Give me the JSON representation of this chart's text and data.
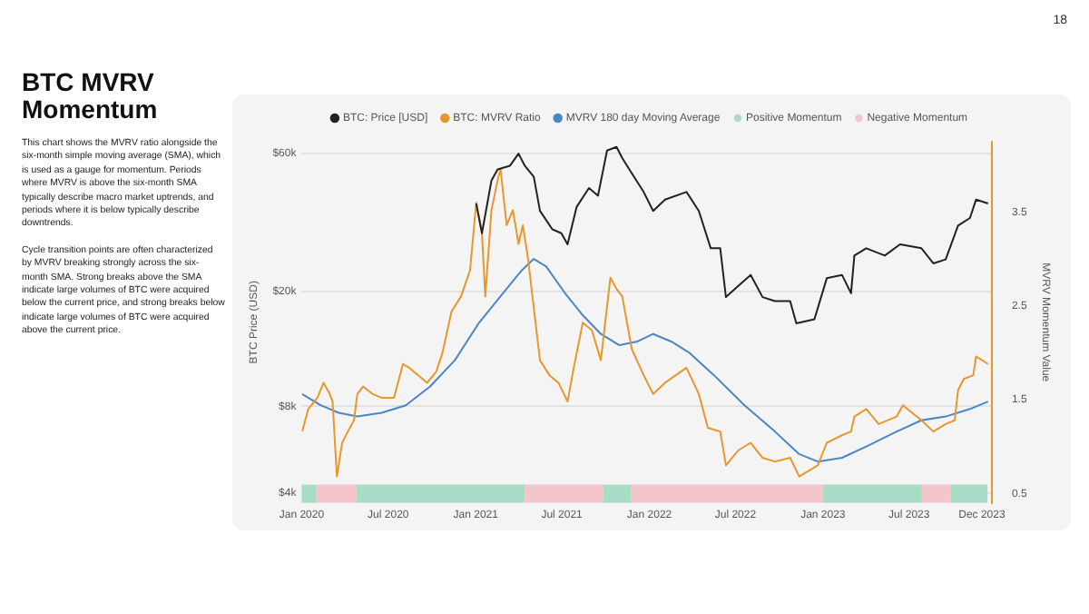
{
  "chart_data": {
    "type": "line",
    "title": "BTC MVRV Momentum",
    "annotations": [
      "18",
      "This chart shows the MVRV ratio alongside the six-month simple moving average (SMA), which is used as a gauge for momentum. Periods where MVRV is above the six-month SMA typically describe macro market uptrends, and periods where it is below typically describe downtrends.",
      "Cycle transition points are often characterized by MVRV breaking strongly across the six-month SMA. Strong breaks above the SMA indicate large volumes of BTC were acquired below the current price, and strong breaks below indicate large volumes of BTC were acquired above the current price."
    ],
    "ylabel": "BTC Price (USD)",
    "y2label": "MVRV Momentum Value",
    "legend": "top",
    "log": "y",
    "grid": "y",
    "xlim": [
      "2020-01-01",
      "2023-12-22"
    ],
    "xticks": [
      {
        "value": "2020-01-01",
        "label": "Jan 2020"
      },
      {
        "value": "2020-07-01",
        "label": "Jul 2020"
      },
      {
        "value": "2021-01-01",
        "label": "Jan 2021"
      },
      {
        "value": "2021-07-01",
        "label": "Jul 2021"
      },
      {
        "value": "2022-01-01",
        "label": "Jan 2022"
      },
      {
        "value": "2022-07-01",
        "label": "Jul 2022"
      },
      {
        "value": "2023-01-01",
        "label": "Jan 2023"
      },
      {
        "value": "2023-07-01",
        "label": "Jul 2023"
      },
      {
        "value": "2023-12-01",
        "label": "Dec 2023"
      }
    ],
    "ylim": [
      3700,
      66000
    ],
    "yticks": [
      {
        "value": 4000,
        "label": "$4k"
      },
      {
        "value": 8000,
        "label": "$8k"
      },
      {
        "value": 20000,
        "label": "$20k"
      },
      {
        "value": 60000,
        "label": "$60k"
      }
    ],
    "y2lim": [
      0.4,
      4.25
    ],
    "y2ticks": [
      0.5,
      1.5,
      2.5,
      3.5
    ],
    "series": [
      {
        "name": "BTC: Price [USD]",
        "color": "#222222",
        "x": [
          "2021-01-02",
          "2021-01-14",
          "2021-02-03",
          "2021-02-16",
          "2021-03-14",
          "2021-04-01",
          "2021-04-14",
          "2021-05-03",
          "2021-05-16",
          "2021-06-11",
          "2021-06-30",
          "2021-07-13",
          "2021-08-01",
          "2021-08-27",
          "2021-09-15",
          "2021-10-04",
          "2021-10-24",
          "2021-11-05",
          "2021-11-25",
          "2021-12-20",
          "2022-01-09",
          "2022-02-03",
          "2022-03-20",
          "2022-04-15",
          "2022-05-10",
          "2022-05-30",
          "2022-06-11",
          "2022-07-07",
          "2022-08-02",
          "2022-08-27",
          "2022-09-22",
          "2022-10-24",
          "2022-11-06",
          "2022-12-14",
          "2023-01-09",
          "2023-02-10",
          "2023-03-01",
          "2023-03-08",
          "2023-04-02",
          "2023-05-11",
          "2023-06-12",
          "2023-07-27",
          "2023-08-21",
          "2023-09-16",
          "2023-10-12",
          "2023-11-06",
          "2023-11-19",
          "2023-12-14"
        ],
        "values": [
          40300,
          31800,
          48400,
          52900,
          54500,
          60000,
          54500,
          49900,
          38000,
          32800,
          31800,
          29100,
          39200,
          45600,
          42900,
          61500,
          63300,
          57900,
          51300,
          44200,
          38000,
          41600,
          44200,
          38000,
          28200,
          28200,
          19100,
          20900,
          22800,
          19100,
          18500,
          18500,
          15500,
          16000,
          22200,
          22800,
          19700,
          26600,
          28200,
          26600,
          29100,
          28200,
          25000,
          25800,
          33800,
          35900,
          41600,
          40300
        ]
      },
      {
        "name": "BTC: MVRV Ratio",
        "color": "#e8962e",
        "axis": "y2",
        "x": [
          "2020-01-02",
          "2020-01-15",
          "2020-02-03",
          "2020-02-16",
          "2020-02-29",
          "2020-03-06",
          "2020-03-15",
          "2020-03-26",
          "2020-04-07",
          "2020-04-20",
          "2020-04-27",
          "2020-05-09",
          "2020-05-29",
          "2020-06-17",
          "2020-07-13",
          "2020-08-01",
          "2020-08-14",
          "2020-09-02",
          "2020-09-21",
          "2020-10-10",
          "2020-10-23",
          "2020-11-11",
          "2020-12-01",
          "2020-12-20",
          "2021-01-02",
          "2021-01-14",
          "2021-01-21",
          "2021-02-03",
          "2021-02-16",
          "2021-02-22",
          "2021-03-07",
          "2021-03-20",
          "2021-04-01",
          "2021-04-10",
          "2021-04-21",
          "2021-05-03",
          "2021-05-16",
          "2021-06-05",
          "2021-06-24",
          "2021-07-13",
          "2021-07-26",
          "2021-08-14",
          "2021-09-02",
          "2021-09-21",
          "2021-10-11",
          "2021-10-24",
          "2021-11-05",
          "2021-11-25",
          "2021-12-20",
          "2022-01-09",
          "2022-02-03",
          "2022-03-20",
          "2022-04-15",
          "2022-05-04",
          "2022-05-30",
          "2022-06-11",
          "2022-07-07",
          "2022-08-02",
          "2022-08-27",
          "2022-09-22",
          "2022-10-24",
          "2022-11-12",
          "2022-12-21",
          "2023-01-09",
          "2023-02-10",
          "2023-03-01",
          "2023-03-08",
          "2023-04-02",
          "2023-04-28",
          "2023-06-05",
          "2023-06-18",
          "2023-07-27",
          "2023-08-21",
          "2023-09-16",
          "2023-10-05",
          "2023-10-12",
          "2023-10-24",
          "2023-11-13",
          "2023-11-19",
          "2023-12-02",
          "2023-12-14"
        ],
        "values": [
          1.16,
          1.4,
          1.52,
          1.68,
          1.56,
          1.48,
          0.68,
          1.04,
          1.16,
          1.28,
          1.56,
          1.64,
          1.56,
          1.52,
          1.52,
          1.88,
          1.84,
          1.76,
          1.68,
          1.8,
          2.0,
          2.44,
          2.6,
          2.88,
          3.6,
          3.28,
          2.6,
          3.52,
          3.84,
          3.96,
          3.36,
          3.52,
          3.16,
          3.36,
          3.0,
          2.48,
          1.92,
          1.76,
          1.68,
          1.48,
          1.84,
          2.32,
          2.24,
          1.92,
          2.8,
          2.68,
          2.6,
          2.04,
          1.76,
          1.56,
          1.68,
          1.84,
          1.56,
          1.2,
          1.16,
          0.8,
          0.96,
          1.04,
          0.88,
          0.84,
          0.88,
          0.68,
          0.8,
          1.04,
          1.12,
          1.16,
          1.32,
          1.4,
          1.24,
          1.32,
          1.44,
          1.28,
          1.16,
          1.24,
          1.28,
          1.6,
          1.72,
          1.76,
          1.96,
          1.92,
          1.88
        ]
      },
      {
        "name": "MVRV 180 day Moving Average",
        "color": "#4a86c5",
        "axis": "y2",
        "x": [
          "2020-01-02",
          "2020-02-10",
          "2020-03-19",
          "2020-04-27",
          "2020-06-17",
          "2020-08-07",
          "2020-09-27",
          "2020-11-18",
          "2021-01-08",
          "2021-02-28",
          "2021-04-08",
          "2021-05-03",
          "2021-05-29",
          "2021-07-07",
          "2021-08-14",
          "2021-09-21",
          "2021-10-30",
          "2021-12-07",
          "2022-01-09",
          "2022-02-16",
          "2022-03-26",
          "2022-05-17",
          "2022-07-20",
          "2022-09-22",
          "2022-11-12",
          "2022-12-21",
          "2023-02-10",
          "2023-04-02",
          "2023-06-05",
          "2023-07-27",
          "2023-09-16",
          "2023-11-06",
          "2023-12-14"
        ],
        "values": [
          1.56,
          1.44,
          1.36,
          1.32,
          1.36,
          1.44,
          1.64,
          1.92,
          2.32,
          2.64,
          2.88,
          3.0,
          2.92,
          2.64,
          2.4,
          2.2,
          2.08,
          2.12,
          2.2,
          2.12,
          2.0,
          1.76,
          1.44,
          1.16,
          0.92,
          0.84,
          0.88,
          1.0,
          1.16,
          1.28,
          1.32,
          1.4,
          1.48
        ]
      }
    ],
    "bands": [
      {
        "axis": "x",
        "from": "2020-01-01",
        "to": "2020-02-01",
        "label": "Positive Momentum",
        "color": "#a8dcc6"
      },
      {
        "axis": "x",
        "from": "2020-02-01",
        "to": "2020-04-25",
        "label": "Negative Momentum",
        "color": "#f3c6cc"
      },
      {
        "axis": "x",
        "from": "2020-04-25",
        "to": "2021-04-14",
        "color": "#a8dcc6"
      },
      {
        "axis": "x",
        "from": "2021-04-14",
        "to": "2021-09-26",
        "color": "#f3c6cc"
      },
      {
        "axis": "x",
        "from": "2021-09-26",
        "to": "2021-11-23",
        "color": "#a8dcc6"
      },
      {
        "axis": "x",
        "from": "2021-11-23",
        "to": "2023-01-01",
        "color": "#f3c6cc"
      },
      {
        "axis": "x",
        "from": "2023-01-01",
        "to": "2023-07-28",
        "color": "#a8dcc6"
      },
      {
        "axis": "x",
        "from": "2023-07-28",
        "to": "2023-09-27",
        "color": "#f3c6cc"
      },
      {
        "axis": "x",
        "from": "2023-09-27",
        "to": "2023-12-13",
        "color": "#a8dcc6"
      }
    ]
  }
}
